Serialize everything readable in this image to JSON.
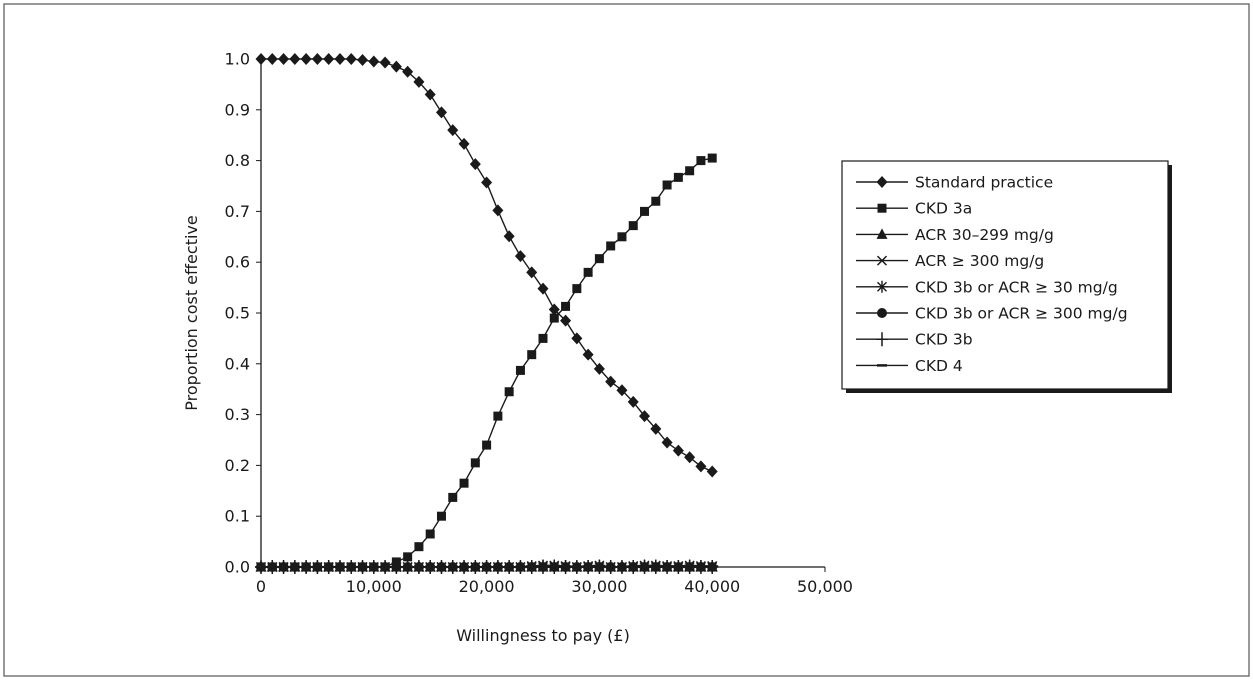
{
  "chart_data": {
    "type": "line",
    "title": "",
    "xlabel": "Willingness to pay (£)",
    "ylabel": "Proportion cost effective",
    "xlim": [
      0,
      50000
    ],
    "ylim": [
      0,
      1.0
    ],
    "x_ticks": [
      0,
      10000,
      20000,
      30000,
      40000,
      50000
    ],
    "x_tick_labels": [
      "0",
      "10,000",
      "20,000",
      "30,000",
      "40,000",
      "50,000"
    ],
    "y_ticks": [
      0,
      0.1,
      0.2,
      0.3,
      0.4,
      0.5,
      0.6,
      0.7,
      0.8,
      0.9,
      1.0
    ],
    "y_tick_labels": [
      "0.0",
      "0.1",
      "0.2",
      "0.3",
      "0.4",
      "0.5",
      "0.6",
      "0.7",
      "0.8",
      "0.9",
      "1.0"
    ],
    "grid": false,
    "legend_position": "right",
    "x": [
      0,
      1000,
      2000,
      3000,
      4000,
      5000,
      6000,
      7000,
      8000,
      9000,
      10000,
      11000,
      12000,
      13000,
      14000,
      15000,
      16000,
      17000,
      18000,
      19000,
      20000,
      21000,
      22000,
      23000,
      24000,
      25000,
      26000,
      27000,
      28000,
      29000,
      30000,
      31000,
      32000,
      33000,
      34000,
      35000,
      36000,
      37000,
      38000,
      39000,
      40000
    ],
    "series": [
      {
        "name": "Standard practice",
        "marker": "diamond",
        "values": [
          1.0,
          1.0,
          1.0,
          1.0,
          1.0,
          1.0,
          1.0,
          1.0,
          1.0,
          0.998,
          0.995,
          0.993,
          0.985,
          0.975,
          0.955,
          0.93,
          0.895,
          0.86,
          0.833,
          0.793,
          0.757,
          0.702,
          0.651,
          0.612,
          0.58,
          0.548,
          0.507,
          0.485,
          0.45,
          0.418,
          0.39,
          0.365,
          0.348,
          0.325,
          0.297,
          0.272,
          0.245,
          0.229,
          0.216,
          0.198,
          0.188
        ]
      },
      {
        "name": "CKD 3a",
        "marker": "square",
        "values": [
          0,
          0,
          0,
          0,
          0,
          0,
          0,
          0,
          0,
          0,
          0,
          0,
          0.01,
          0.02,
          0.04,
          0.065,
          0.1,
          0.137,
          0.165,
          0.205,
          0.24,
          0.297,
          0.345,
          0.387,
          0.418,
          0.45,
          0.49,
          0.513,
          0.548,
          0.58,
          0.607,
          0.632,
          0.65,
          0.672,
          0.7,
          0.72,
          0.752,
          0.767,
          0.78,
          0.8,
          0.805
        ]
      },
      {
        "name": "ACR 30–299 mg/g",
        "marker": "triangle",
        "values": [
          0,
          0,
          0,
          0,
          0,
          0,
          0,
          0,
          0,
          0,
          0,
          0,
          0,
          0,
          0,
          0,
          0,
          0,
          0,
          0,
          0,
          0,
          0,
          0,
          0,
          0,
          0,
          0,
          0,
          0,
          0,
          0,
          0,
          0,
          0,
          0,
          0,
          0,
          0,
          0,
          0
        ]
      },
      {
        "name": "ACR ≥ 300 mg/g",
        "marker": "x",
        "values": [
          0,
          0,
          0,
          0,
          0,
          0,
          0,
          0,
          0,
          0,
          0,
          0,
          0,
          0,
          0,
          0,
          0,
          0,
          0,
          0,
          0,
          0,
          0,
          0,
          0,
          0,
          0,
          0,
          0,
          0,
          0,
          0,
          0,
          0,
          0,
          0,
          0,
          0,
          0,
          0,
          0
        ]
      },
      {
        "name": "CKD 3b or ACR ≥ 30 mg/g",
        "marker": "star",
        "values": [
          0,
          0,
          0,
          0,
          0,
          0,
          0,
          0,
          0,
          0,
          0,
          0,
          0,
          0,
          0,
          0,
          0,
          0,
          0,
          0,
          0,
          0,
          0,
          0,
          0.002,
          0.003,
          0.003,
          0.002,
          0,
          0.002,
          0.003,
          0,
          0,
          0.002,
          0.003,
          0.003,
          0.002,
          0.002,
          0.003,
          0.002,
          0.002
        ]
      },
      {
        "name": "CKD 3b or ACR ≥ 300 mg/g",
        "marker": "circle",
        "values": [
          0,
          0,
          0,
          0,
          0,
          0,
          0,
          0,
          0,
          0,
          0,
          0,
          0,
          0,
          0,
          0,
          0,
          0,
          0,
          0,
          0,
          0,
          0,
          0,
          0,
          0,
          0,
          0,
          0,
          0,
          0,
          0,
          0,
          0,
          0,
          0,
          0,
          0,
          0,
          0,
          0
        ]
      },
      {
        "name": "CKD 3b",
        "marker": "plus",
        "values": [
          0,
          0,
          0,
          0,
          0,
          0,
          0,
          0,
          0,
          0,
          0,
          0,
          0,
          0,
          0,
          0,
          0,
          0,
          0,
          0,
          0,
          0,
          0,
          0,
          0,
          0,
          0,
          0,
          0,
          0,
          0,
          0,
          0,
          0,
          0,
          0,
          0,
          0,
          0,
          0,
          0
        ]
      },
      {
        "name": "CKD 4",
        "marker": "dash",
        "values": [
          0,
          0,
          0,
          0,
          0,
          0,
          0,
          0,
          0,
          0,
          0,
          0,
          0,
          0,
          0,
          0,
          0,
          0,
          0,
          0,
          0,
          0,
          0,
          0,
          0,
          0,
          0,
          0,
          0,
          0,
          0,
          0,
          0,
          0,
          0,
          0,
          0,
          0,
          0,
          0,
          0
        ]
      }
    ]
  },
  "colors": {
    "ink": "#1a1a1a",
    "background": "#ffffff",
    "frame": "#555555"
  }
}
